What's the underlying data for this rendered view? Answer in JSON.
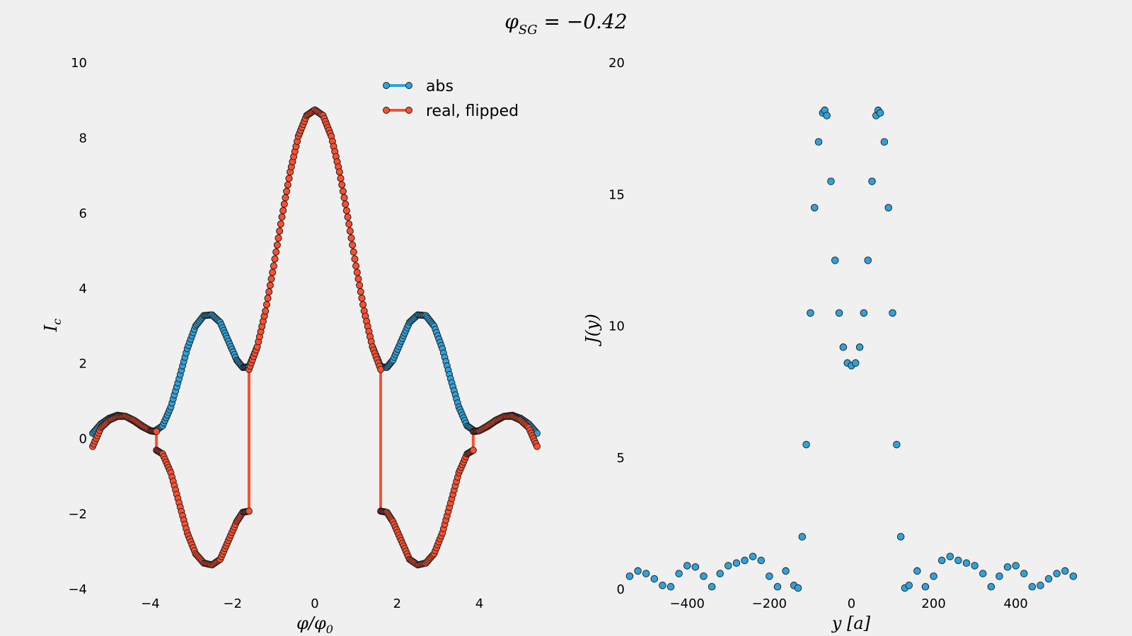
{
  "suptitle": "φ_SG = −0.42",
  "chart_data": [
    {
      "type": "scatter",
      "xlabel": "φ/φ₀",
      "ylabel": "I_c",
      "xlim": [
        -5.4,
        5.4
      ],
      "ylim": [
        -4,
        10
      ],
      "x_ticks": [
        -4,
        -2,
        0,
        2,
        4
      ],
      "y_ticks": [
        -4,
        -2,
        0,
        2,
        4,
        6,
        8,
        10
      ],
      "x_tick_labels": [
        "−4",
        "−2",
        "0",
        "2",
        "4"
      ],
      "y_tick_labels": [
        "−4",
        "−2",
        "0",
        "2",
        "4",
        "6",
        "8",
        "10"
      ],
      "grid": false,
      "legend_position": "top-right",
      "series": [
        {
          "name": "abs",
          "color": "#30a2da",
          "x": [
            -5.4,
            -5.2,
            -5.0,
            -4.8,
            -4.6,
            -4.4,
            -4.2,
            -4.0,
            -3.9,
            -3.7,
            -3.5,
            -3.3,
            -3.1,
            -2.9,
            -2.7,
            -2.5,
            -2.3,
            -2.1,
            -1.9,
            -1.75,
            -1.6,
            -1.4,
            -1.2,
            -1.0,
            -0.8,
            -0.6,
            -0.4,
            -0.2,
            0,
            0.2,
            0.4,
            0.6,
            0.8,
            1.0,
            1.2,
            1.4,
            1.6,
            1.75,
            1.9,
            2.1,
            2.3,
            2.5,
            2.7,
            2.9,
            3.1,
            3.3,
            3.5,
            3.7,
            3.9,
            4.0,
            4.2,
            4.4,
            4.6,
            4.8,
            5.0,
            5.2,
            5.4
          ],
          "y": [
            0.15,
            0.4,
            0.55,
            0.63,
            0.6,
            0.48,
            0.33,
            0.22,
            0.2,
            0.35,
            0.85,
            1.6,
            2.4,
            3.0,
            3.28,
            3.3,
            3.1,
            2.6,
            2.1,
            1.9,
            1.92,
            2.45,
            3.4,
            4.6,
            5.9,
            7.1,
            8.05,
            8.6,
            8.75,
            8.6,
            8.05,
            7.1,
            5.9,
            4.6,
            3.4,
            2.45,
            1.92,
            1.9,
            2.1,
            2.6,
            3.1,
            3.3,
            3.28,
            3.0,
            2.4,
            1.6,
            0.85,
            0.35,
            0.2,
            0.22,
            0.33,
            0.48,
            0.6,
            0.63,
            0.55,
            0.4,
            0.15
          ]
        },
        {
          "name": "real, flipped",
          "color": "#fc4f30",
          "x": [
            -5.4,
            -5.2,
            -5.0,
            -4.8,
            -4.6,
            -4.4,
            -4.2,
            -4.0,
            -3.85,
            -3.85,
            -3.7,
            -3.5,
            -3.3,
            -3.1,
            -2.9,
            -2.7,
            -2.5,
            -2.3,
            -2.1,
            -1.9,
            -1.75,
            -1.6,
            -1.6,
            -1.4,
            -1.2,
            -1.0,
            -0.8,
            -0.6,
            -0.4,
            -0.2,
            0,
            0.2,
            0.4,
            0.6,
            0.8,
            1.0,
            1.2,
            1.4,
            1.6,
            1.6,
            1.75,
            1.9,
            2.1,
            2.3,
            2.5,
            2.7,
            2.9,
            3.1,
            3.3,
            3.5,
            3.7,
            3.85,
            3.85,
            4.0,
            4.2,
            4.4,
            4.6,
            4.8,
            5.0,
            5.2,
            5.4
          ],
          "y": [
            -0.2,
            0.3,
            0.5,
            0.6,
            0.6,
            0.5,
            0.35,
            0.22,
            0.2,
            -0.3,
            -0.4,
            -0.9,
            -1.7,
            -2.5,
            -3.05,
            -3.3,
            -3.35,
            -3.2,
            -2.7,
            -2.2,
            -1.95,
            -1.92,
            1.85,
            2.45,
            3.4,
            4.6,
            5.9,
            7.1,
            8.05,
            8.6,
            8.75,
            8.6,
            8.05,
            7.1,
            5.9,
            4.6,
            3.4,
            2.45,
            1.85,
            -1.92,
            -1.95,
            -2.2,
            -2.7,
            -3.2,
            -3.35,
            -3.3,
            -3.05,
            -2.5,
            -1.7,
            -0.9,
            -0.4,
            -0.3,
            0.2,
            0.22,
            0.35,
            0.5,
            0.6,
            0.6,
            0.5,
            0.3,
            -0.2
          ]
        }
      ]
    },
    {
      "type": "scatter",
      "xlabel": "y [a]",
      "ylabel": "J(y)",
      "xlim": [
        -540,
        540
      ],
      "ylim": [
        0,
        20
      ],
      "x_ticks": [
        -400,
        -200,
        0,
        200,
        400
      ],
      "y_ticks": [
        0,
        5,
        10,
        15,
        20
      ],
      "x_tick_labels": [
        "−400",
        "−200",
        "0",
        "200",
        "400"
      ],
      "y_tick_labels": [
        "0",
        "5",
        "10",
        "15",
        "20"
      ],
      "grid": false,
      "series": [
        {
          "color": "#30a2da",
          "x": [
            -540,
            -520,
            -500,
            -480,
            -460,
            -440,
            -420,
            -400,
            -380,
            -360,
            -340,
            -320,
            -300,
            -280,
            -260,
            -240,
            -220,
            -200,
            -180,
            -160,
            -140,
            -130,
            -120,
            -110,
            -100,
            -90,
            -80,
            -70,
            -65,
            -60,
            -50,
            -40,
            -30,
            -20,
            -10,
            0,
            10,
            20,
            30,
            40,
            50,
            60,
            65,
            70,
            80,
            90,
            100,
            110,
            120,
            130,
            140,
            160,
            180,
            200,
            220,
            240,
            260,
            280,
            300,
            320,
            340,
            360,
            380,
            400,
            420,
            440,
            460,
            480,
            500,
            520,
            540
          ],
          "y": [
            0.5,
            0.7,
            0.6,
            0.4,
            0.15,
            0.1,
            0.6,
            0.9,
            0.85,
            0.5,
            0.1,
            0.6,
            0.9,
            1.0,
            1.1,
            1.25,
            1.1,
            0.5,
            0.1,
            0.7,
            0.15,
            0.05,
            2.0,
            5.5,
            10.5,
            14.5,
            17.0,
            18.1,
            18.2,
            18.0,
            15.5,
            12.5,
            10.5,
            9.2,
            8.6,
            8.5,
            8.6,
            9.2,
            10.5,
            12.5,
            15.5,
            18.0,
            18.2,
            18.1,
            17.0,
            14.5,
            10.5,
            5.5,
            2.0,
            0.05,
            0.15,
            0.7,
            0.1,
            0.5,
            1.1,
            1.25,
            1.1,
            1.0,
            0.9,
            0.6,
            0.1,
            0.5,
            0.85,
            0.9,
            0.6,
            0.1,
            0.15,
            0.4,
            0.6,
            0.7,
            0.5
          ]
        }
      ]
    }
  ]
}
